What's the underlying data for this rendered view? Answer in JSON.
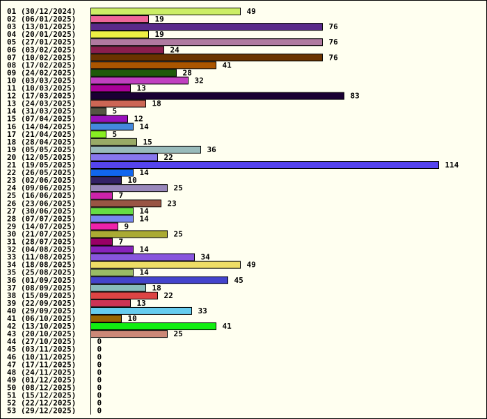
{
  "chart_data": {
    "type": "bar",
    "orientation": "horizontal",
    "title": "",
    "xlabel": "",
    "ylabel": "",
    "grid": false,
    "legend": "none",
    "xlim": [
      0,
      114
    ],
    "categories": [
      "01 (30/12/2024)",
      "02 (06/01/2025)",
      "03 (13/01/2025)",
      "04 (20/01/2025)",
      "05 (27/01/2025)",
      "06 (03/02/2025)",
      "07 (10/02/2025)",
      "08 (17/02/2025)",
      "09 (24/02/2025)",
      "10 (03/03/2025)",
      "11 (10/03/2025)",
      "12 (17/03/2025)",
      "13 (24/03/2025)",
      "14 (31/03/2025)",
      "15 (07/04/2025)",
      "16 (14/04/2025)",
      "17 (21/04/2025)",
      "18 (28/04/2025)",
      "19 (05/05/2025)",
      "20 (12/05/2025)",
      "21 (19/05/2025)",
      "22 (26/05/2025)",
      "23 (02/06/2025)",
      "24 (09/06/2025)",
      "25 (16/06/2025)",
      "26 (23/06/2025)",
      "27 (30/06/2025)",
      "28 (07/07/2025)",
      "29 (14/07/2025)",
      "30 (21/07/2025)",
      "31 (28/07/2025)",
      "32 (04/08/2025)",
      "33 (11/08/2025)",
      "34 (18/08/2025)",
      "35 (25/08/2025)",
      "36 (01/09/2025)",
      "37 (08/09/2025)",
      "38 (15/09/2025)",
      "39 (22/09/2025)",
      "40 (29/09/2025)",
      "41 (06/10/2025)",
      "42 (13/10/2025)",
      "43 (20/10/2025)",
      "44 (27/10/2025)",
      "45 (03/11/2025)",
      "46 (10/11/2025)",
      "47 (17/11/2025)",
      "48 (24/11/2025)",
      "49 (01/12/2025)",
      "50 (08/12/2025)",
      "51 (15/12/2025)",
      "52 (22/12/2025)",
      "53 (29/12/2025)"
    ],
    "values": [
      49,
      19,
      76,
      19,
      76,
      24,
      76,
      41,
      28,
      32,
      13,
      83,
      18,
      5,
      12,
      14,
      5,
      15,
      36,
      22,
      114,
      14,
      10,
      25,
      7,
      23,
      14,
      14,
      9,
      25,
      7,
      14,
      34,
      49,
      14,
      45,
      18,
      22,
      13,
      33,
      10,
      41,
      25,
      0,
      0,
      0,
      0,
      0,
      0,
      0,
      0,
      0,
      0
    ],
    "colors": [
      "#ccee66",
      "#ee6699",
      "#5a2a8a",
      "#eeee44",
      "#b07aa1",
      "#8b1e4e",
      "#6b3300",
      "#aa5500",
      "#1f5a0a",
      "#c040c0",
      "#aa0099",
      "#1a0033",
      "#cc6655",
      "#555544",
      "#9911bb",
      "#4488dd",
      "#88ee22",
      "#99aa66",
      "#99bbbb",
      "#8877ee",
      "#5544ee",
      "#1166ee",
      "#332266",
      "#9988bb",
      "#cc22aa",
      "#995544",
      "#66dd44",
      "#7788ee",
      "#ee22aa",
      "#aaaa33",
      "#990066",
      "#8822bb",
      "#8855dd",
      "#eedd66",
      "#99bb66",
      "#4444cc",
      "#88bbbb",
      "#dd4444",
      "#cc3355",
      "#66ccee",
      "#996600",
      "#11ee11",
      "#cc8877",
      "#cccccc",
      "#cccccc",
      "#cccccc",
      "#cccccc",
      "#cccccc",
      "#cccccc",
      "#cccccc",
      "#cccccc",
      "#cccccc",
      "#cccccc"
    ],
    "axis_color": "#000000",
    "bar_border_color": "#000000",
    "background_color": "#fffff0"
  }
}
